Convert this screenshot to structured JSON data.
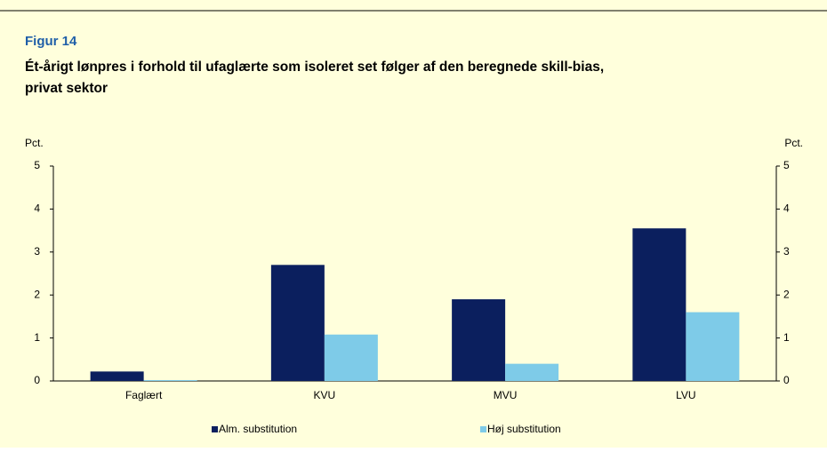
{
  "chart_data": {
    "type": "bar",
    "figure_label": "Figur 14",
    "title": "Ét-årigt lønpres i forhold til ufaglærte som isoleret set følger af den beregnede skill-bias,",
    "title_line2": "privat sektor",
    "y_label": "Pct.",
    "y2_label": "Pct.",
    "categories": [
      "Faglært",
      "KVU",
      "MVU",
      "LVU"
    ],
    "series": [
      {
        "name": "Alm. substitution",
        "color": "#0b1f5e",
        "values": [
          0.22,
          2.7,
          1.9,
          3.55
        ]
      },
      {
        "name": "Høj substitution",
        "color": "#7ecbe8",
        "values": [
          0.02,
          1.08,
          0.4,
          1.6
        ]
      }
    ],
    "ylim": [
      0,
      5
    ],
    "yticks": [
      0,
      1,
      2,
      3,
      4,
      5
    ],
    "y2lim": [
      0,
      5
    ],
    "y2ticks": [
      0,
      1,
      2,
      3,
      4,
      5
    ],
    "grid": false
  }
}
